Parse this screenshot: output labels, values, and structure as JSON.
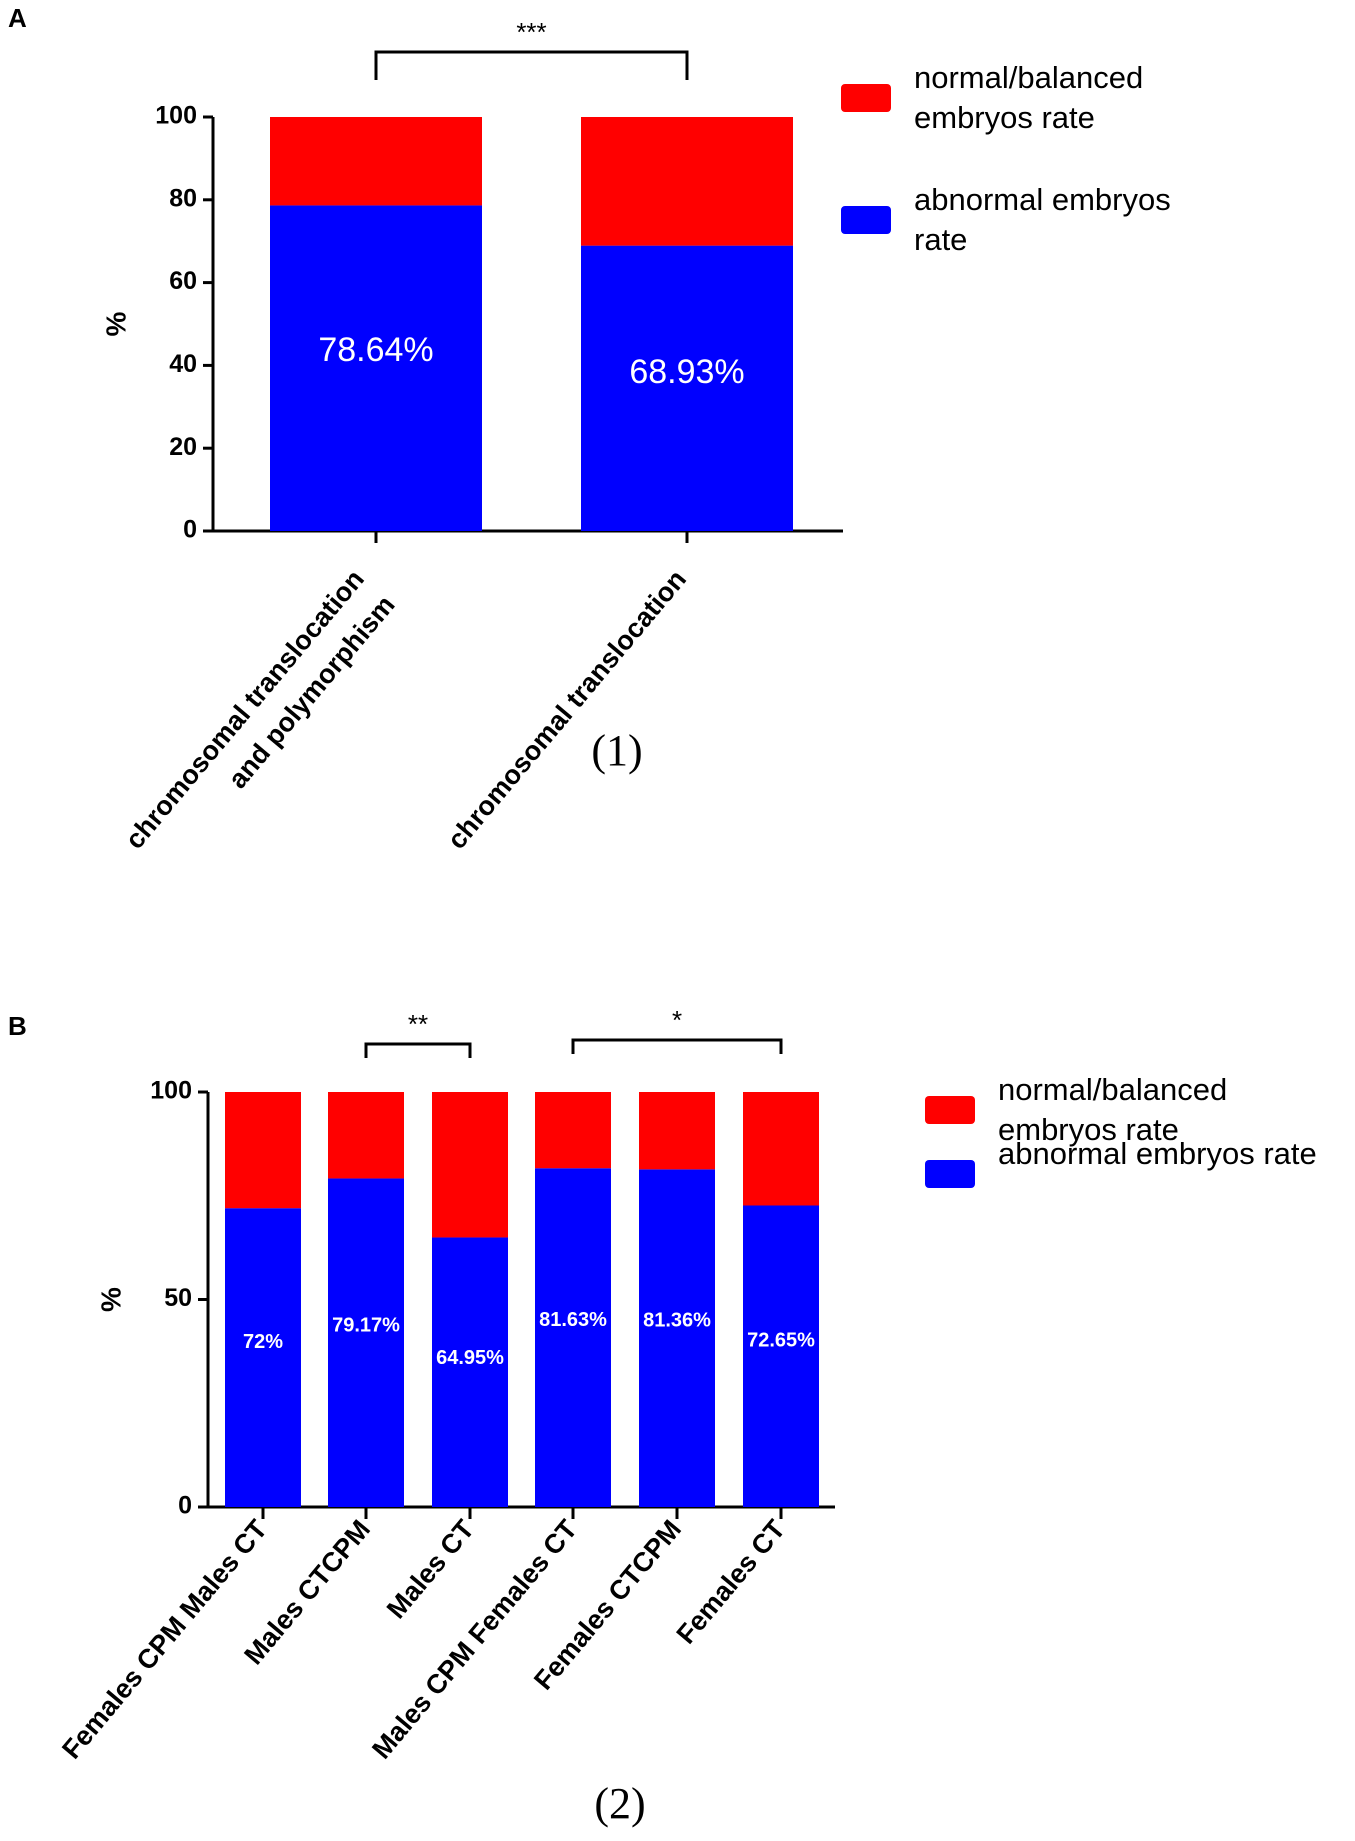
{
  "chart_data": [
    {
      "type": "bar",
      "stacked": true,
      "panel": "A",
      "caption": "(1)",
      "y_label": "%",
      "categories": [
        "chromosomal translocation and polymorphism",
        "chromosomal translocation"
      ],
      "series": [
        {
          "name": "abnormal embryos rate",
          "color": "#0000ff",
          "values": [
            78.64,
            68.93
          ],
          "value_labels": [
            "78.64%",
            "68.93%"
          ]
        },
        {
          "name": "normal/balanced embryos rate",
          "color": "#ff0000",
          "values": [
            21.36,
            31.07
          ]
        }
      ],
      "ylim": [
        0,
        100
      ],
      "yticks": [
        0,
        20,
        40,
        60,
        80,
        100
      ],
      "annotations": [
        "***"
      ]
    },
    {
      "type": "bar",
      "stacked": true,
      "panel": "B",
      "caption": "(2)",
      "y_label": "%",
      "categories": [
        "Females CPM Males CT",
        "Males CTCPM",
        "Males CT",
        "Males CPM Females CT",
        "Females CTCPM",
        "Females CT"
      ],
      "series": [
        {
          "name": "abnormal embryos rate",
          "color": "#0000ff",
          "values": [
            72,
            79.17,
            64.95,
            81.63,
            81.36,
            72.65
          ],
          "value_labels": [
            "72%",
            "79.17%",
            "64.95%",
            "81.63%",
            "81.36%",
            "72.65%"
          ]
        },
        {
          "name": "normal/balanced embryos rate",
          "color": "#ff0000",
          "values": [
            28,
            20.83,
            35.05,
            18.37,
            18.64,
            27.35
          ]
        }
      ],
      "ylim": [
        0,
        100
      ],
      "yticks": [
        0,
        50,
        100
      ],
      "annotations": [
        "**",
        "*"
      ]
    }
  ]
}
